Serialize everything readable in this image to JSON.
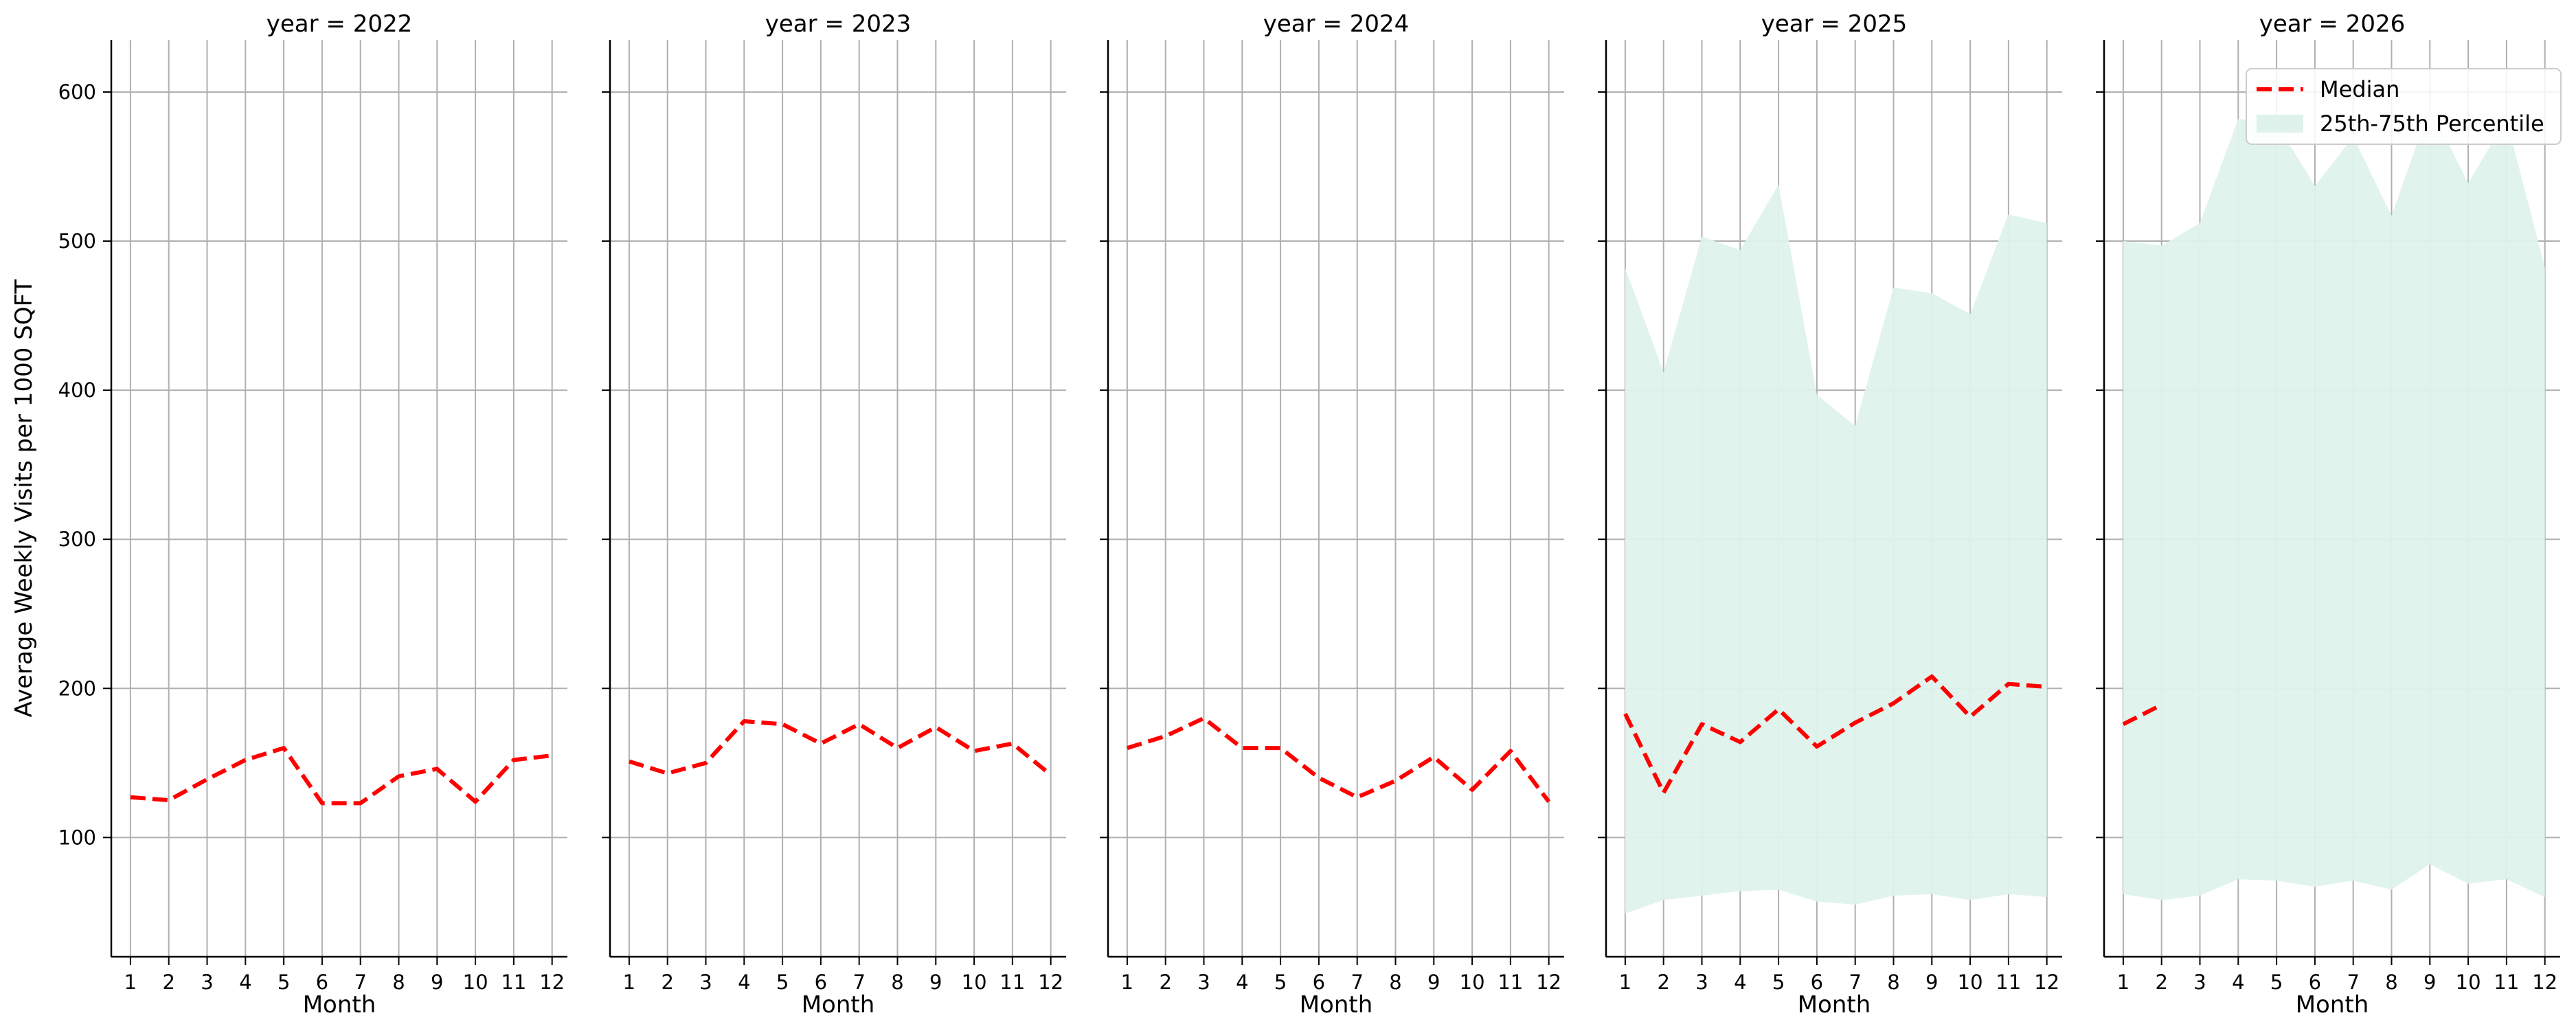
{
  "chart_data": {
    "type": "line",
    "ylabel": "Average Weekly Visits per 1000 SQFT",
    "xlabel": "Month",
    "ylim": [
      20,
      635
    ],
    "xlim": [
      0.5,
      12.4
    ],
    "x_ticks": [
      1,
      2,
      3,
      4,
      5,
      6,
      7,
      8,
      9,
      10,
      11,
      12
    ],
    "y_ticks": [
      100,
      200,
      300,
      400,
      500,
      600
    ],
    "grid": true,
    "shared_y": true,
    "legend": {
      "placement": "top-right",
      "entries": [
        "Median",
        "25th-75th Percentile"
      ]
    },
    "colors": {
      "median": "#ff0000",
      "band": "#dff2ec",
      "grid": "#b0b0b0",
      "axis": "#000000"
    },
    "panels": [
      {
        "title": "year = 2022",
        "median": [
          127,
          125,
          139,
          152,
          160,
          123,
          123,
          141,
          146,
          124,
          152,
          155
        ],
        "band_low": [],
        "band_high": []
      },
      {
        "title": "year = 2023",
        "median": [
          151,
          143,
          150,
          178,
          176,
          163,
          176,
          160,
          174,
          158,
          163,
          142
        ],
        "band_low": [],
        "band_high": []
      },
      {
        "title": "year = 2024",
        "median": [
          160,
          168,
          180,
          160,
          160,
          140,
          127,
          138,
          154,
          132,
          158,
          124
        ],
        "band_low": [],
        "band_high": []
      },
      {
        "title": "year = 2025",
        "median": [
          183,
          130,
          176,
          164,
          186,
          161,
          177,
          190,
          208,
          181,
          203,
          201
        ],
        "band_low": [
          49,
          58,
          61,
          64,
          65,
          57,
          55,
          61,
          62,
          58,
          62,
          60
        ],
        "band_high": [
          482,
          412,
          503,
          494,
          538,
          397,
          376,
          469,
          465,
          451,
          518,
          512
        ]
      },
      {
        "title": "year = 2026",
        "median": [
          176,
          189
        ],
        "band_low": [
          62,
          58,
          61,
          72,
          71,
          67,
          71,
          65,
          82,
          69,
          72,
          60
        ],
        "band_high": [
          500,
          497,
          512,
          582,
          579,
          537,
          570,
          517,
          590,
          539,
          582,
          482
        ]
      }
    ]
  }
}
